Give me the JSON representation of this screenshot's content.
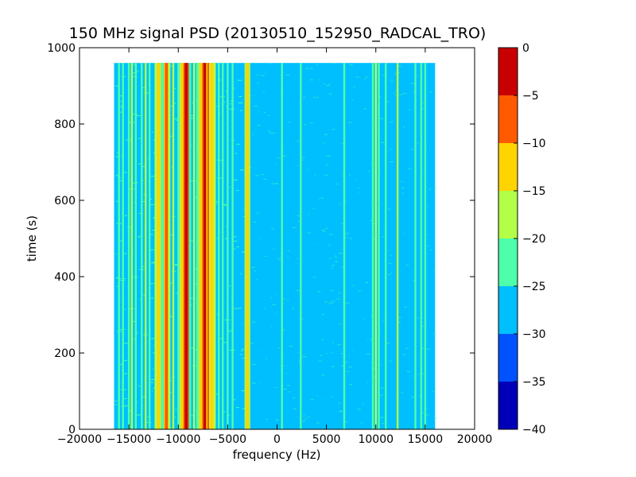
{
  "chart_data": {
    "type": "heatmap",
    "title": "150 MHz signal PSD (20130510_152950_RADCAL_TRO)",
    "xlabel": "frequency (Hz)",
    "ylabel": "time (s)",
    "xlim": [
      -20000,
      20000
    ],
    "ylim": [
      0,
      1000
    ],
    "xticks": [
      -20000,
      -15000,
      -10000,
      -5000,
      0,
      5000,
      10000,
      15000,
      20000
    ],
    "xtick_labels": [
      "−20000",
      "−15000",
      "−10000",
      "−5000",
      "0",
      "5000",
      "10000",
      "15000",
      "20000"
    ],
    "yticks": [
      0,
      200,
      400,
      600,
      800,
      1000
    ],
    "ytick_labels": [
      "0",
      "200",
      "400",
      "600",
      "800",
      "1000"
    ],
    "data_extent": {
      "x": [
        -16500,
        16000
      ],
      "y": [
        0,
        960
      ]
    },
    "background_level": -27.5,
    "colorbar": {
      "levels": [
        -40,
        -35,
        -30,
        -25,
        -20,
        -15,
        -10,
        -5,
        0
      ],
      "tick_labels": [
        "−40",
        "−35",
        "−30",
        "−25",
        "−20",
        "−15",
        "−10",
        "−5",
        "0"
      ],
      "colors": [
        "#0000b8",
        "#0052ff",
        "#00bfff",
        "#4dffaa",
        "#b3ff47",
        "#ffd400",
        "#ff5a00",
        "#c80000"
      ]
    },
    "lines": [
      {
        "x": -16000,
        "level": -22.5
      },
      {
        "x": -15600,
        "level": -22.5
      },
      {
        "x": -15000,
        "level": -22.5
      },
      {
        "x": -14700,
        "level": -17.5
      },
      {
        "x": -14300,
        "level": -22.5
      },
      {
        "x": -13700,
        "level": -22.5
      },
      {
        "x": -13300,
        "level": -17.5
      },
      {
        "x": -12900,
        "level": -22.5
      },
      {
        "x": -12300,
        "level": -17.5
      },
      {
        "x": -12000,
        "level": -12.5
      },
      {
        "x": -11600,
        "level": -22.5
      },
      {
        "x": -11200,
        "level": -7.5
      },
      {
        "x": -10900,
        "level": -17.5
      },
      {
        "x": -10500,
        "level": -17.5
      },
      {
        "x": -10000,
        "level": -22.5
      },
      {
        "x": -9600,
        "level": -12.5
      },
      {
        "x": -9200,
        "level": -2.5
      },
      {
        "x": -8800,
        "level": -22.5
      },
      {
        "x": -8400,
        "level": -17.5
      },
      {
        "x": -8100,
        "level": -22.5
      },
      {
        "x": -7700,
        "level": -12.5
      },
      {
        "x": -7300,
        "level": -2.5
      },
      {
        "x": -6900,
        "level": -7.5
      },
      {
        "x": -6600,
        "level": -12.5
      },
      {
        "x": -6300,
        "level": -17.5
      },
      {
        "x": -5900,
        "level": -22.5
      },
      {
        "x": -5500,
        "level": -22.5
      },
      {
        "x": -5000,
        "level": -22.5
      },
      {
        "x": -4500,
        "level": -22.5
      },
      {
        "x": -3000,
        "level": -12.5
      },
      {
        "x": 500,
        "level": -22.5
      },
      {
        "x": 2400,
        "level": -22.5
      },
      {
        "x": 6800,
        "level": -22.5
      },
      {
        "x": 9700,
        "level": -22.5
      },
      {
        "x": 10000,
        "level": -17.5
      },
      {
        "x": 10300,
        "level": -22.5
      },
      {
        "x": 11000,
        "level": -22.5
      },
      {
        "x": 12200,
        "level": -17.5
      },
      {
        "x": 14000,
        "level": -22.5
      },
      {
        "x": 14600,
        "level": -22.5
      },
      {
        "x": 15000,
        "level": -22.5
      }
    ]
  }
}
